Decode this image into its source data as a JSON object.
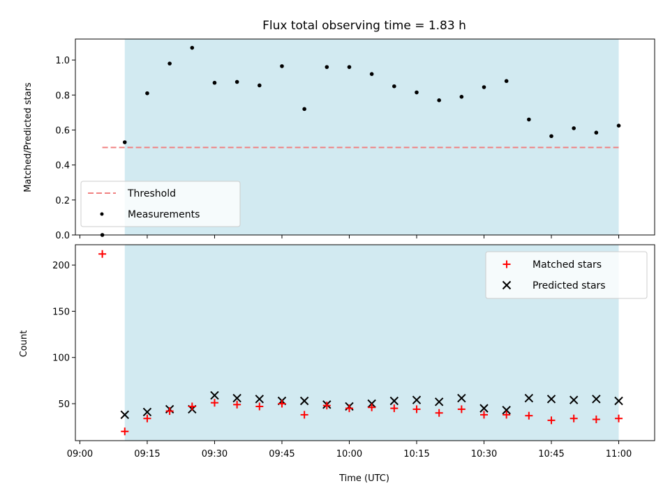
{
  "title": "Flux total observing time = 1.83 h",
  "colors": {
    "shade": "#add8e6",
    "threshold": "#f08080",
    "measurement": "#000000",
    "matched": "#ff0000",
    "predicted": "#000000"
  },
  "chart_data": [
    {
      "type": "scatter",
      "ylabel": "Matched/Predicted stars",
      "ylim": [
        0,
        1.12
      ],
      "yticks": [
        "0.0",
        "0.2",
        "0.4",
        "0.6",
        "0.8",
        "1.0"
      ],
      "shaded_span": [
        "09:10",
        "11:00"
      ],
      "legend": {
        "placement": "lower-left",
        "entries": [
          "Threshold",
          "Measurements"
        ]
      },
      "threshold": {
        "name": "Threshold",
        "value": 0.5,
        "x_range": [
          "09:05",
          "11:00"
        ]
      },
      "series": [
        {
          "name": "Measurements",
          "x": [
            "09:05",
            "09:10",
            "09:15",
            "09:20",
            "09:25",
            "09:30",
            "09:35",
            "09:40",
            "09:45",
            "09:50",
            "09:55",
            "10:00",
            "10:05",
            "10:10",
            "10:15",
            "10:20",
            "10:25",
            "10:30",
            "10:35",
            "10:40",
            "10:45",
            "10:50",
            "10:55",
            "11:00"
          ],
          "y": [
            0.0,
            0.53,
            0.81,
            0.98,
            1.07,
            0.87,
            0.875,
            0.855,
            0.965,
            0.72,
            0.96,
            0.96,
            0.92,
            0.85,
            0.815,
            0.77,
            0.79,
            0.845,
            0.88,
            0.66,
            0.565,
            0.61,
            0.585,
            0.625
          ]
        }
      ]
    },
    {
      "type": "scatter",
      "xlabel": "Time (UTC)",
      "ylabel": "Count",
      "ylim": [
        10,
        222
      ],
      "yticks": [
        "50",
        "100",
        "150",
        "200"
      ],
      "xlim": [
        "08:59",
        "11:08"
      ],
      "xticks": [
        "09:00",
        "09:15",
        "09:30",
        "09:45",
        "10:00",
        "10:15",
        "10:30",
        "10:45",
        "11:00"
      ],
      "shaded_span": [
        "09:10",
        "11:00"
      ],
      "legend": {
        "placement": "upper-right",
        "entries": [
          "Matched stars",
          "Predicted stars"
        ]
      },
      "series": [
        {
          "name": "Matched stars",
          "x": [
            "09:05",
            "09:10",
            "09:15",
            "09:20",
            "09:25",
            "09:30",
            "09:35",
            "09:40",
            "09:45",
            "09:50",
            "09:55",
            "10:00",
            "10:05",
            "10:10",
            "10:15",
            "10:20",
            "10:25",
            "10:30",
            "10:35",
            "10:40",
            "10:45",
            "10:50",
            "10:55",
            "11:00"
          ],
          "y": [
            212,
            20,
            34,
            42,
            47,
            51,
            49,
            47,
            50,
            38,
            48,
            45,
            46,
            45,
            44,
            40,
            44,
            38,
            38,
            37,
            32,
            34,
            33,
            34
          ]
        },
        {
          "name": "Predicted stars",
          "x": [
            "09:10",
            "09:15",
            "09:20",
            "09:25",
            "09:30",
            "09:35",
            "09:40",
            "09:45",
            "09:50",
            "09:55",
            "10:00",
            "10:05",
            "10:10",
            "10:15",
            "10:20",
            "10:25",
            "10:30",
            "10:35",
            "10:40",
            "10:45",
            "10:50",
            "10:55",
            "11:00"
          ],
          "y": [
            38,
            41,
            44,
            44,
            59,
            56,
            55,
            53,
            53,
            49,
            47,
            50,
            53,
            54,
            52,
            56,
            45,
            43,
            56,
            55,
            54,
            55,
            53
          ]
        }
      ]
    }
  ]
}
